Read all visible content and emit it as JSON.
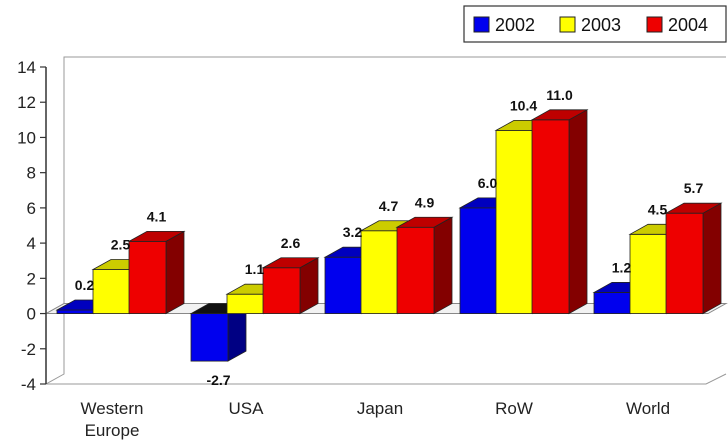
{
  "chart_data": {
    "type": "bar",
    "title": "",
    "xlabel": "",
    "ylabel": "",
    "categories": [
      "Western Europe",
      "USA",
      "Japan",
      "RoW",
      "World"
    ],
    "category_lines": [
      [
        "Western",
        "Europe"
      ],
      [
        "USA"
      ],
      [
        "Japan"
      ],
      [
        "RoW"
      ],
      [
        "World"
      ]
    ],
    "series": [
      {
        "name": "2002",
        "color": "#0000ee",
        "values": [
          0.2,
          -2.7,
          3.2,
          6.0,
          1.2
        ],
        "labels": [
          "0.2",
          "-2.7",
          "3.2",
          "6.0",
          "1.2"
        ]
      },
      {
        "name": "2003",
        "color": "#ffff00",
        "values": [
          2.5,
          1.1,
          4.7,
          10.4,
          4.5
        ],
        "labels": [
          "2.5",
          "1.1",
          "4.7",
          "10.4",
          "4.5"
        ]
      },
      {
        "name": "2004",
        "color": "#ee0000",
        "values": [
          4.1,
          2.6,
          4.9,
          11.0,
          5.7
        ],
        "labels": [
          "4.1",
          "2.6",
          "4.9",
          "11.0",
          "5.7"
        ]
      }
    ],
    "ylim": [
      -4,
      14
    ],
    "yticks": [
      14,
      12,
      10,
      8,
      6,
      4,
      2,
      0,
      -2,
      -4
    ],
    "grid": false,
    "legend_position": "top-right",
    "style": "3d-clustered-bar"
  }
}
